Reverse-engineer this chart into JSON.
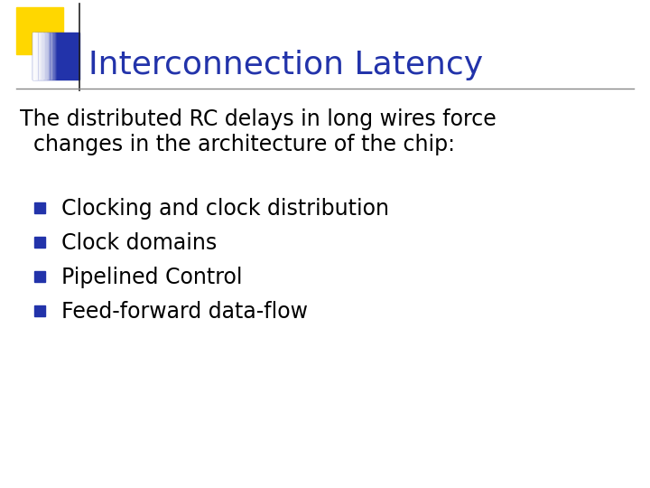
{
  "title": "Interconnection Latency",
  "title_color": "#2233AA",
  "background_color": "#FFFFFF",
  "subtitle_line1": "The distributed RC delays in long wires force",
  "subtitle_line2": "  changes in the architecture of the chip:",
  "subtitle_color": "#000000",
  "subtitle_fontsize": 17,
  "bullet_items": [
    "Clocking and clock distribution",
    "Clock domains",
    "Pipelined Control",
    "Feed-forward data-flow"
  ],
  "bullet_color": "#000000",
  "bullet_fontsize": 17,
  "bullet_square_color": "#2233AA",
  "decoration_yellow_color": "#FFD700",
  "decoration_blue_color": "#2233AA",
  "title_fontsize": 26,
  "separator_color": "#888888",
  "vertical_line_color": "#222222"
}
